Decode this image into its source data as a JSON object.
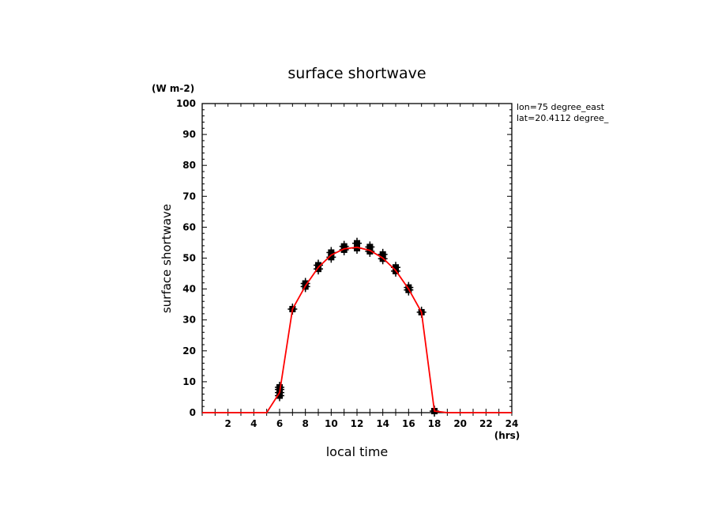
{
  "chart_data": {
    "type": "line",
    "title": "surface shortwave",
    "xlabel": "local time",
    "ylabel": "surface shortwave",
    "y_unit": "(W m-2)",
    "x_unit": "(hrs)",
    "xlim": [
      0,
      24
    ],
    "ylim": [
      0,
      100
    ],
    "x_ticks": [
      2,
      4,
      6,
      8,
      10,
      12,
      14,
      16,
      18,
      20,
      22,
      24
    ],
    "y_ticks": [
      0,
      10,
      20,
      30,
      40,
      50,
      60,
      70,
      80,
      90,
      100
    ],
    "annotations": [
      "lon=75 degree_east",
      "lat=20.4112 degree_"
    ],
    "grid": false,
    "series": [
      {
        "color": "#ff0000",
        "x": [
          0,
          1,
          2,
          3,
          4,
          5,
          6,
          7,
          8,
          9,
          10,
          11,
          12,
          13,
          14,
          15,
          16,
          17,
          18,
          19,
          20,
          21,
          22,
          23,
          24
        ],
        "values": [
          0,
          0,
          0,
          0,
          0,
          0,
          6.5,
          33.5,
          41,
          47,
          51,
          53,
          53.5,
          52.5,
          50,
          46,
          40,
          32.5,
          0.5,
          0,
          0,
          0,
          0,
          0,
          0
        ]
      }
    ],
    "markers": [
      {
        "x": 6,
        "values": [
          5.5,
          6.5,
          7.5,
          8.2
        ]
      },
      {
        "x": 7,
        "values": [
          33.5
        ]
      },
      {
        "x": 8,
        "values": [
          40.8,
          41.8
        ]
      },
      {
        "x": 9,
        "values": [
          46.5,
          47.7
        ]
      },
      {
        "x": 10,
        "values": [
          50.3,
          51.8
        ]
      },
      {
        "x": 11,
        "values": [
          52.7,
          53.8
        ]
      },
      {
        "x": 12,
        "values": [
          53.2,
          54.8
        ]
      },
      {
        "x": 13,
        "values": [
          52.2,
          53.6
        ]
      },
      {
        "x": 14,
        "values": [
          49.8,
          51.2
        ]
      },
      {
        "x": 15,
        "values": [
          45.8,
          47.0
        ]
      },
      {
        "x": 16,
        "values": [
          39.7,
          40.5
        ]
      },
      {
        "x": 17,
        "values": [
          32.5
        ]
      },
      {
        "x": 18,
        "values": [
          0.5
        ]
      }
    ]
  }
}
